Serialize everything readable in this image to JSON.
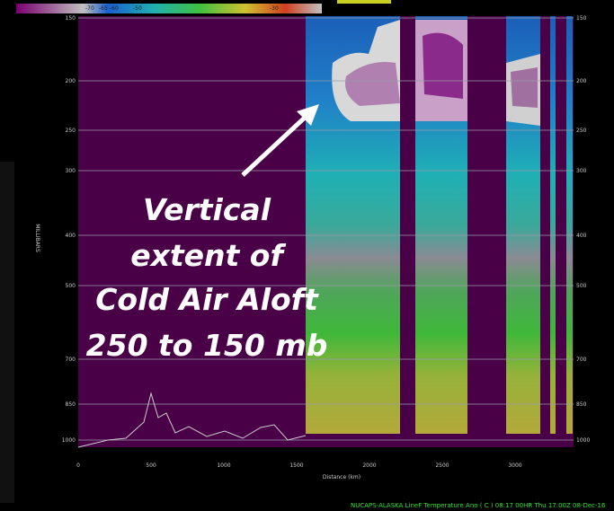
{
  "plot": {
    "y_axis_title": "MILLIBARS",
    "x_axis_title": "Distance (km)",
    "y_tick_labels": [
      "150",
      "200",
      "250",
      "300",
      "400",
      "500",
      "700",
      "850",
      "1000"
    ],
    "x_tick_labels": [
      "0",
      "500",
      "1000",
      "1500",
      "2000",
      "2500",
      "3000"
    ]
  },
  "colorbar": {
    "labels": [
      "-70",
      "-65",
      "-60",
      "-50",
      "-30"
    ]
  },
  "annotation": {
    "lines": [
      "Vertical",
      "extent of",
      "Cold Air Aloft",
      "250 to 150 mb"
    ]
  },
  "footer": "NUCAPS-ALASKA LineF Temperature Ano ( C )  08:17  00HR Thu 17:00Z 08-Dec-16"
}
